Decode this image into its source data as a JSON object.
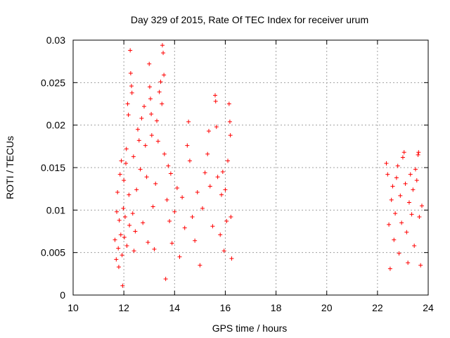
{
  "chart_data": {
    "type": "scatter",
    "title": "Day 329 of 2015, Rate Of TEC Index for receiver urum",
    "xlabel": "GPS time / hours",
    "ylabel": "ROTI / TECUs",
    "xlim": [
      10,
      24
    ],
    "ylim": [
      0,
      0.03
    ],
    "x_ticks": [
      10,
      12,
      14,
      16,
      18,
      20,
      22,
      24
    ],
    "x_tick_labels": [
      "10",
      "12",
      "14",
      "16",
      "18",
      "20",
      "22",
      "24"
    ],
    "y_ticks": [
      0,
      0.005,
      0.01,
      0.015,
      0.02,
      0.025,
      0.03
    ],
    "y_tick_labels": [
      "0",
      "0.005",
      "0.01",
      "0.015",
      "0.02",
      "0.025",
      "0.03"
    ],
    "grid": true,
    "marker": "+",
    "series": [
      {
        "name": "ROTI",
        "color": "#ff0000",
        "points": [
          [
            11.65,
            0.0065
          ],
          [
            11.7,
            0.0042
          ],
          [
            11.72,
            0.0098
          ],
          [
            11.75,
            0.0121
          ],
          [
            11.78,
            0.0055
          ],
          [
            11.8,
            0.0033
          ],
          [
            11.82,
            0.0088
          ],
          [
            11.85,
            0.0142
          ],
          [
            11.88,
            0.0071
          ],
          [
            11.9,
            0.0158
          ],
          [
            11.93,
            0.0047
          ],
          [
            11.95,
            0.0011
          ],
          [
            11.98,
            0.0102
          ],
          [
            12.0,
            0.0135
          ],
          [
            12.02,
            0.0068
          ],
          [
            12.05,
            0.0092
          ],
          [
            12.08,
            0.0155
          ],
          [
            12.1,
            0.0172
          ],
          [
            12.12,
            0.0058
          ],
          [
            12.15,
            0.0225
          ],
          [
            12.18,
            0.0212
          ],
          [
            12.2,
            0.0118
          ],
          [
            12.22,
            0.0082
          ],
          [
            12.25,
            0.0288
          ],
          [
            12.27,
            0.0261
          ],
          [
            12.3,
            0.0246
          ],
          [
            12.32,
            0.0238
          ],
          [
            12.35,
            0.0096
          ],
          [
            12.38,
            0.0163
          ],
          [
            12.4,
            0.0052
          ],
          [
            12.45,
            0.0075
          ],
          [
            12.5,
            0.0124
          ],
          [
            12.55,
            0.0195
          ],
          [
            12.6,
            0.0182
          ],
          [
            12.65,
            0.0148
          ],
          [
            12.7,
            0.0208
          ],
          [
            12.75,
            0.0085
          ],
          [
            12.8,
            0.0222
          ],
          [
            12.85,
            0.0176
          ],
          [
            12.9,
            0.0139
          ],
          [
            12.95,
            0.0062
          ],
          [
            13.0,
            0.0272
          ],
          [
            13.02,
            0.0245
          ],
          [
            13.05,
            0.0231
          ],
          [
            13.08,
            0.0213
          ],
          [
            13.1,
            0.0188
          ],
          [
            13.15,
            0.0104
          ],
          [
            13.2,
            0.0054
          ],
          [
            13.25,
            0.0131
          ],
          [
            13.3,
            0.0205
          ],
          [
            13.35,
            0.0181
          ],
          [
            13.4,
            0.0239
          ],
          [
            13.45,
            0.0251
          ],
          [
            13.5,
            0.0225
          ],
          [
            13.52,
            0.0294
          ],
          [
            13.55,
            0.0285
          ],
          [
            13.58,
            0.0259
          ],
          [
            13.6,
            0.0166
          ],
          [
            13.65,
            0.0019
          ],
          [
            13.7,
            0.0112
          ],
          [
            13.75,
            0.0152
          ],
          [
            13.8,
            0.0087
          ],
          [
            13.85,
            0.0143
          ],
          [
            13.9,
            0.0061
          ],
          [
            14.0,
            0.0098
          ],
          [
            14.1,
            0.0126
          ],
          [
            14.2,
            0.0045
          ],
          [
            14.3,
            0.0115
          ],
          [
            14.4,
            0.0079
          ],
          [
            14.5,
            0.0176
          ],
          [
            14.55,
            0.0204
          ],
          [
            14.6,
            0.0158
          ],
          [
            14.7,
            0.0092
          ],
          [
            14.8,
            0.0064
          ],
          [
            14.9,
            0.0121
          ],
          [
            15.0,
            0.0035
          ],
          [
            15.1,
            0.0102
          ],
          [
            15.2,
            0.0144
          ],
          [
            15.3,
            0.0166
          ],
          [
            15.35,
            0.0193
          ],
          [
            15.4,
            0.0128
          ],
          [
            15.5,
            0.0081
          ],
          [
            15.6,
            0.0235
          ],
          [
            15.62,
            0.0228
          ],
          [
            15.65,
            0.0198
          ],
          [
            15.7,
            0.0139
          ],
          [
            15.8,
            0.0071
          ],
          [
            15.85,
            0.0118
          ],
          [
            15.9,
            0.0145
          ],
          [
            15.95,
            0.0052
          ],
          [
            16.0,
            0.0124
          ],
          [
            16.05,
            0.0087
          ],
          [
            16.1,
            0.0158
          ],
          [
            16.15,
            0.0225
          ],
          [
            16.18,
            0.0204
          ],
          [
            16.2,
            0.0188
          ],
          [
            16.22,
            0.0092
          ],
          [
            16.25,
            0.0043
          ],
          [
            22.35,
            0.0155
          ],
          [
            22.4,
            0.0142
          ],
          [
            22.45,
            0.0083
          ],
          [
            22.5,
            0.0031
          ],
          [
            22.55,
            0.0112
          ],
          [
            22.6,
            0.0128
          ],
          [
            22.65,
            0.0065
          ],
          [
            22.7,
            0.0096
          ],
          [
            22.75,
            0.0138
          ],
          [
            22.8,
            0.0152
          ],
          [
            22.85,
            0.0049
          ],
          [
            22.9,
            0.0117
          ],
          [
            22.95,
            0.0085
          ],
          [
            23.0,
            0.0162
          ],
          [
            23.05,
            0.0168
          ],
          [
            23.1,
            0.0131
          ],
          [
            23.15,
            0.0074
          ],
          [
            23.2,
            0.0038
          ],
          [
            23.25,
            0.0109
          ],
          [
            23.3,
            0.0142
          ],
          [
            23.35,
            0.0095
          ],
          [
            23.4,
            0.0124
          ],
          [
            23.45,
            0.0058
          ],
          [
            23.5,
            0.0148
          ],
          [
            23.55,
            0.0135
          ],
          [
            23.6,
            0.0165
          ],
          [
            23.62,
            0.0168
          ],
          [
            23.65,
            0.0092
          ],
          [
            23.7,
            0.0035
          ],
          [
            23.75,
            0.0105
          ]
        ]
      }
    ]
  }
}
